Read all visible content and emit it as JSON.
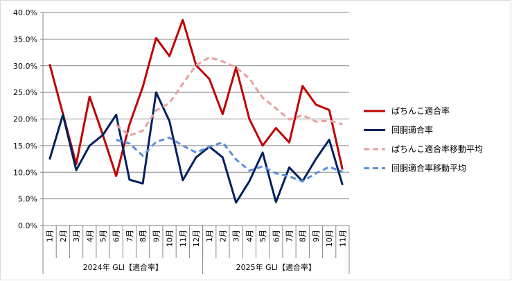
{
  "chart_data": {
    "type": "line",
    "title": "",
    "xlabel": "",
    "ylabel": "",
    "ylim": [
      0,
      40
    ],
    "yticks": [
      "0.0%",
      "5.0%",
      "10.0%",
      "15.0%",
      "20.0%",
      "25.0%",
      "30.0%",
      "35.0%",
      "40.0%"
    ],
    "grid": true,
    "legend_position": "right",
    "categories": [
      "1月",
      "2月",
      "3月",
      "4月",
      "5月",
      "6月",
      "7月",
      "8月",
      "9月",
      "10月",
      "11月",
      "12月",
      "1月",
      "2月",
      "3月",
      "4月",
      "5月",
      "6月",
      "7月",
      "8月",
      "9月",
      "10月",
      "11月"
    ],
    "groups": [
      {
        "label": "2024年 GLI【適合率】",
        "count": 12
      },
      {
        "label": "2025年 GLI【適合率】",
        "count": 11
      }
    ],
    "series": [
      {
        "name": "ぱちんこ適合率",
        "color": "#c00000",
        "dash": false,
        "values": [
          30.3,
          21.0,
          11.5,
          24.2,
          17.0,
          9.3,
          19.0,
          26.0,
          35.2,
          31.8,
          38.6,
          30.1,
          27.5,
          20.9,
          29.7,
          20.0,
          15.0,
          18.3,
          15.6,
          26.2,
          22.7,
          21.7,
          10.5
        ]
      },
      {
        "name": "回胴適合率",
        "color": "#002060",
        "dash": false,
        "values": [
          12.4,
          20.8,
          10.4,
          15.0,
          17.0,
          20.8,
          8.6,
          7.9,
          25.0,
          19.6,
          8.5,
          12.8,
          14.8,
          12.8,
          4.3,
          8.3,
          13.7,
          4.4,
          10.9,
          8.3,
          12.5,
          16.1,
          7.6
        ]
      },
      {
        "name": "ぱちんこ適合率移動平均",
        "color": "#e6a0a0",
        "dash": true,
        "values": [
          null,
          null,
          null,
          null,
          null,
          18.9,
          16.9,
          17.8,
          21.6,
          23.0,
          26.6,
          30.1,
          31.6,
          30.8,
          29.7,
          27.6,
          24.0,
          22.0,
          19.9,
          20.7,
          19.5,
          19.7,
          19.0
        ]
      },
      {
        "name": "回胴適合率移動平均",
        "color": "#5b8fd6",
        "dash": true,
        "values": [
          null,
          null,
          null,
          null,
          null,
          16.1,
          15.4,
          13.1,
          15.7,
          16.5,
          15.0,
          13.7,
          14.8,
          15.6,
          12.4,
          10.3,
          11.1,
          9.8,
          9.2,
          8.3,
          9.8,
          11.0,
          10.1
        ]
      }
    ]
  }
}
